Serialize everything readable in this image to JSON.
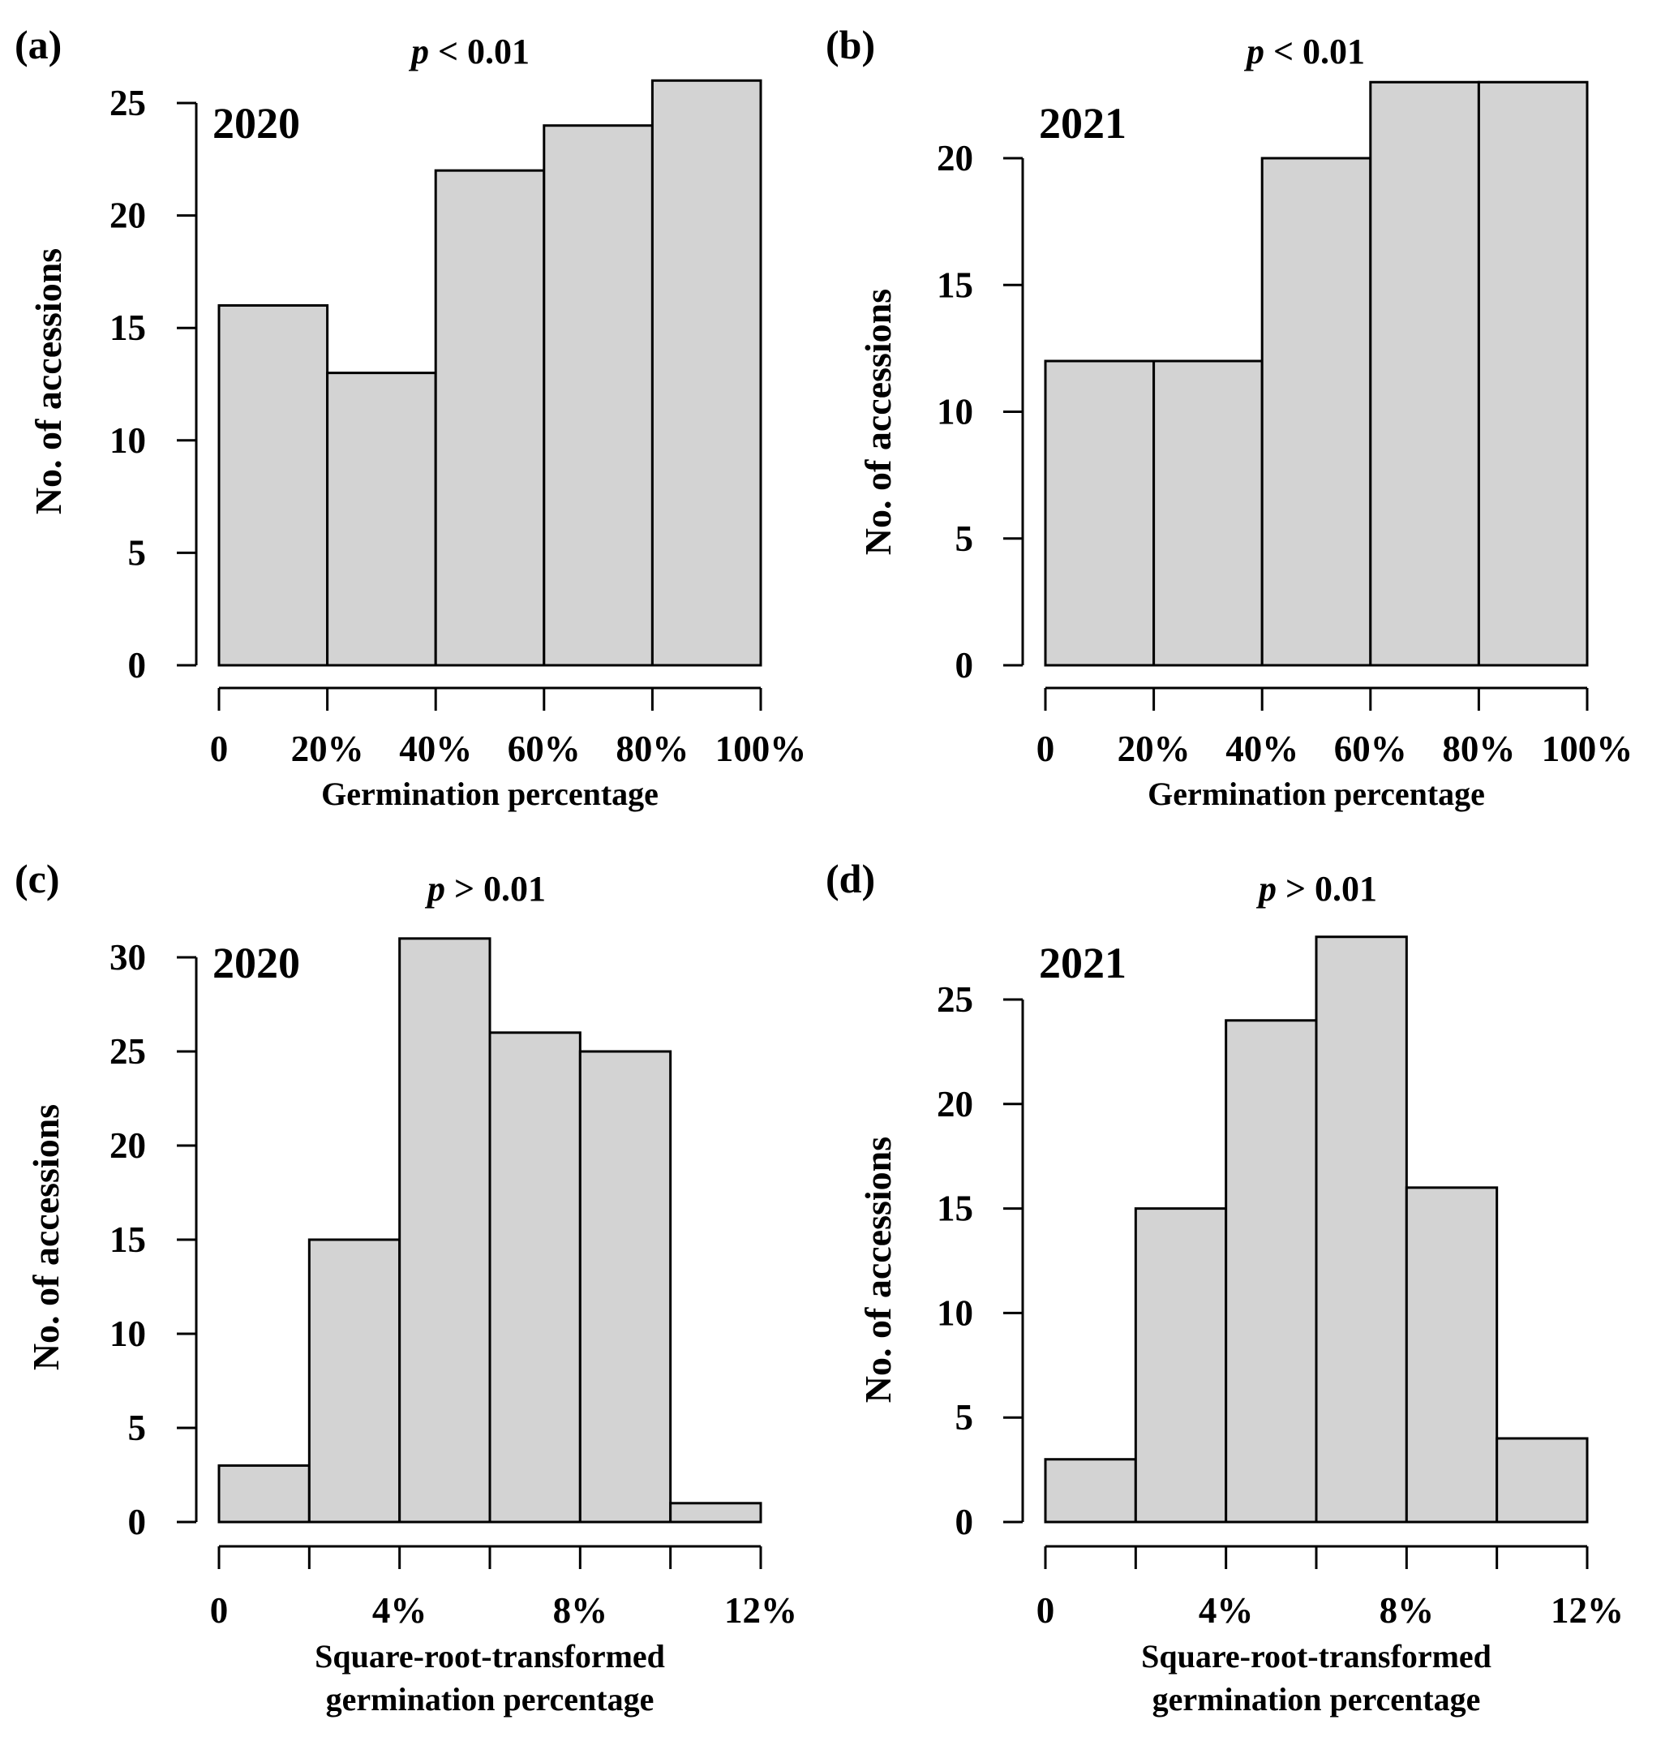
{
  "colors": {
    "bar_fill": "#d3d3d3",
    "bar_stroke": "#000000",
    "background": "#ffffff"
  },
  "chart_data": [
    {
      "type": "bar",
      "panel": "(a)",
      "annotation_p": "p",
      "annotation_rest": " < 0.01",
      "year_label": "2020",
      "title": "",
      "xlabel": [
        "Germination percentage"
      ],
      "ylabel": "No. of accessions",
      "bins": [
        [
          0,
          20
        ],
        [
          20,
          40
        ],
        [
          40,
          60
        ],
        [
          60,
          80
        ],
        [
          80,
          100
        ]
      ],
      "values": [
        16,
        13,
        22,
        24,
        26
      ],
      "xlim": [
        0,
        100
      ],
      "ylim": [
        0,
        25
      ],
      "xtick_values": [
        0,
        20,
        40,
        60,
        80,
        100
      ],
      "xtick_labels": [
        "0",
        "20%",
        "40%",
        "60%",
        "80%",
        "100%"
      ],
      "xlabel_values": [
        0,
        20,
        40,
        60,
        80,
        100
      ],
      "ytick_values": [
        0,
        5,
        10,
        15,
        20,
        25
      ],
      "ytick_labels": [
        "0",
        "5",
        "10",
        "15",
        "20",
        "25"
      ],
      "grid": false
    },
    {
      "type": "bar",
      "panel": "(b)",
      "annotation_p": "p",
      "annotation_rest": " < 0.01",
      "year_label": "2021",
      "title": "",
      "xlabel": [
        "Germination percentage"
      ],
      "ylabel": "No. of accessions",
      "bins": [
        [
          0,
          20
        ],
        [
          20,
          40
        ],
        [
          40,
          60
        ],
        [
          60,
          80
        ],
        [
          80,
          100
        ]
      ],
      "values": [
        12,
        12,
        20,
        23,
        23
      ],
      "xlim": [
        0,
        100
      ],
      "ylim": [
        0,
        20
      ],
      "xtick_values": [
        0,
        20,
        40,
        60,
        80,
        100
      ],
      "xtick_labels": [
        "0",
        "20%",
        "40%",
        "60%",
        "80%",
        "100%"
      ],
      "xlabel_values": [
        0,
        20,
        40,
        60,
        80,
        100
      ],
      "ytick_values": [
        0,
        5,
        10,
        15,
        20
      ],
      "ytick_labels": [
        "0",
        "5",
        "10",
        "15",
        "20"
      ],
      "grid": false
    },
    {
      "type": "bar",
      "panel": "(c)",
      "annotation_p": "p",
      "annotation_rest": " > 0.01",
      "year_label": "2020",
      "title": "",
      "xlabel": [
        "Square-root-transformed",
        "germination percentage"
      ],
      "ylabel": "No. of accessions",
      "bins": [
        [
          0,
          2
        ],
        [
          2,
          4
        ],
        [
          4,
          6
        ],
        [
          6,
          8
        ],
        [
          8,
          10
        ],
        [
          10,
          12
        ]
      ],
      "values": [
        3,
        15,
        31,
        26,
        25,
        1
      ],
      "xlim": [
        0,
        12
      ],
      "ylim": [
        0,
        30
      ],
      "xtick_values": [
        0,
        2,
        4,
        6,
        8,
        10,
        12
      ],
      "xtick_labels": [
        "0",
        "4%",
        "8%",
        "12%"
      ],
      "xlabel_values": [
        0,
        4,
        8,
        12
      ],
      "ytick_values": [
        0,
        5,
        10,
        15,
        20,
        25,
        30
      ],
      "ytick_labels": [
        "0",
        "5",
        "10",
        "15",
        "20",
        "25",
        "30"
      ],
      "grid": false
    },
    {
      "type": "bar",
      "panel": "(d)",
      "annotation_p": "p",
      "annotation_rest": " > 0.01",
      "year_label": "2021",
      "title": "",
      "xlabel": [
        "Square-root-transformed",
        "germination percentage"
      ],
      "ylabel": "No. of accessions",
      "bins": [
        [
          0,
          2
        ],
        [
          2,
          4
        ],
        [
          4,
          6
        ],
        [
          6,
          8
        ],
        [
          8,
          10
        ],
        [
          10,
          12
        ]
      ],
      "values": [
        3,
        15,
        24,
        28,
        16,
        4
      ],
      "xlim": [
        0,
        12
      ],
      "ylim": [
        0,
        25
      ],
      "xtick_values": [
        0,
        2,
        4,
        6,
        8,
        10,
        12
      ],
      "xtick_labels": [
        "0",
        "4%",
        "8%",
        "12%"
      ],
      "xlabel_values": [
        0,
        4,
        8,
        12
      ],
      "ytick_values": [
        0,
        5,
        10,
        15,
        20,
        25
      ],
      "ytick_labels": [
        "0",
        "5",
        "10",
        "15",
        "20",
        "25"
      ],
      "grid": false
    }
  ]
}
